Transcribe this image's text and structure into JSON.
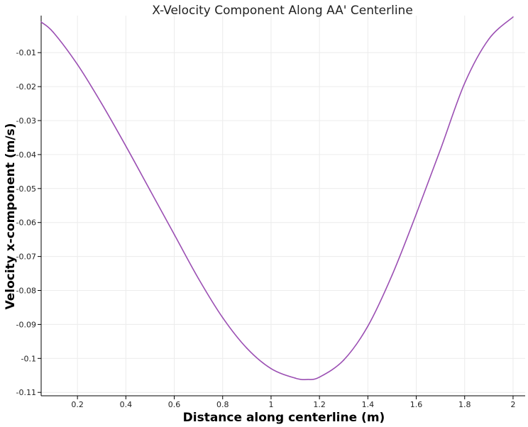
{
  "chart_data": {
    "type": "line",
    "title": "X-Velocity Component Along AA' Centerline",
    "xlabel": "Distance along centerline (m)",
    "ylabel": "Velocity x-component (m/s)",
    "xlim": [
      0.05,
      2.05
    ],
    "ylim": [
      -0.111,
      0.0009
    ],
    "xticks": [
      0.2,
      0.4,
      0.6,
      0.8,
      1,
      1.2,
      1.4,
      1.6,
      1.8,
      2
    ],
    "yticks": [
      -0.01,
      -0.02,
      -0.03,
      -0.04,
      -0.05,
      -0.06,
      -0.07,
      -0.08,
      -0.09,
      -0.1,
      -0.11
    ],
    "grid": true,
    "line_color": "#9b4fb3",
    "series": [
      {
        "x": [
          0.05,
          0.1,
          0.2,
          0.3,
          0.4,
          0.5,
          0.6,
          0.7,
          0.8,
          0.9,
          1.0,
          1.1,
          1.15,
          1.2,
          1.3,
          1.4,
          1.5,
          1.6,
          1.7,
          1.8,
          1.9,
          2.0
        ],
        "values": [
          -0.001,
          -0.004,
          -0.0135,
          -0.025,
          -0.0375,
          -0.0505,
          -0.0635,
          -0.0765,
          -0.088,
          -0.097,
          -0.103,
          -0.1058,
          -0.1062,
          -0.1055,
          -0.1005,
          -0.0905,
          -0.0755,
          -0.0575,
          -0.0385,
          -0.019,
          -0.006,
          0.0005
        ]
      }
    ]
  }
}
